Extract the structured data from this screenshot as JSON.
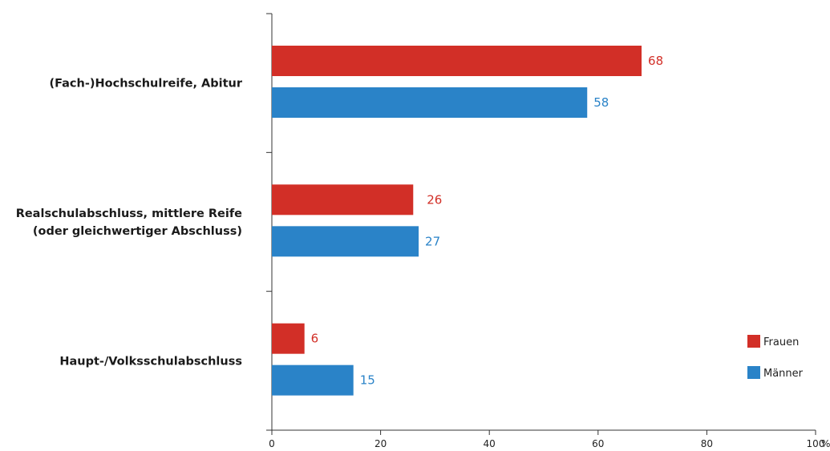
{
  "chart_data": {
    "type": "bar",
    "orientation": "horizontal",
    "categories": [
      [
        "(Fach-)Hochschulreife, Abitur"
      ],
      [
        "Realschulabschluss, mittlere Reife",
        "(oder gleichwertiger Abschluss)"
      ],
      [
        "Haupt-/Volksschulabschluss"
      ]
    ],
    "series": [
      {
        "name": "Frauen",
        "color": "#d22f27",
        "values": [
          68,
          26,
          6
        ]
      },
      {
        "name": "Männer",
        "color": "#2a83c8",
        "values": [
          58,
          27,
          15
        ]
      }
    ],
    "xlim": [
      0,
      100
    ],
    "xticks": [
      "0",
      "20",
      "40",
      "60",
      "80",
      "100"
    ],
    "xunit": "%",
    "legend_position": "bottom-right",
    "grid": false
  }
}
